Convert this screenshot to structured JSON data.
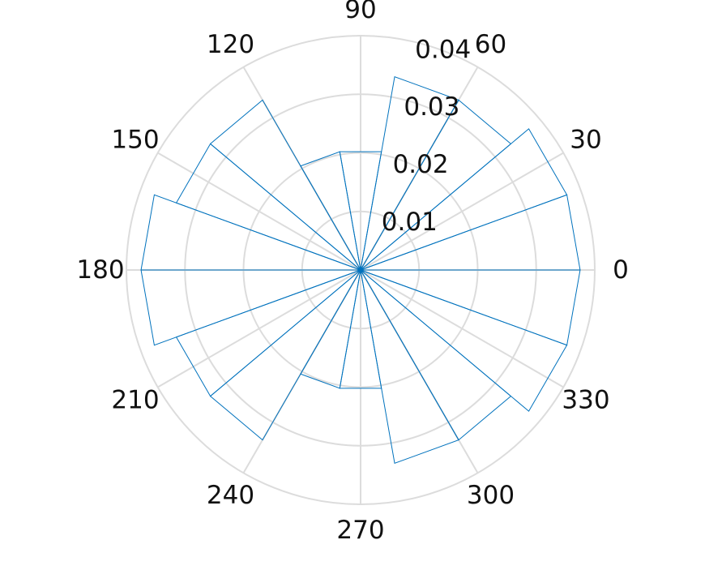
{
  "chart_data": {
    "type": "polar-histogram",
    "title": "",
    "theta_unit": "degrees",
    "theta_zero": "east",
    "theta_direction": "counterclockwise",
    "bin_width_deg": 20,
    "bin_edges": [
      0,
      20,
      40,
      60,
      80,
      100,
      120,
      140,
      160,
      180,
      200,
      220,
      240,
      260,
      280,
      300,
      320,
      340,
      360
    ],
    "values": [
      0.0375,
      0.0375,
      0.0335,
      0.0335,
      0.0205,
      0.0205,
      0.0335,
      0.0335,
      0.0375,
      0.0375,
      0.0335,
      0.0335,
      0.0205,
      0.0205,
      0.0335,
      0.0335,
      0.0375,
      0.0375
    ],
    "rlim": [
      0,
      0.04
    ],
    "radial_ticks": [
      "0.01",
      "0.02",
      "0.03",
      "0.04"
    ],
    "radial_tick_values": [
      0.01,
      0.02,
      0.03,
      0.04
    ],
    "angle_ticks": [
      "0",
      "30",
      "60",
      "90",
      "120",
      "150",
      "180",
      "210",
      "240",
      "270",
      "300",
      "330"
    ],
    "angle_tick_values": [
      0,
      30,
      60,
      90,
      120,
      150,
      180,
      210,
      240,
      270,
      300,
      330
    ],
    "grid": true,
    "series_color": "#0072bd",
    "grid_color": "#dcdcdc"
  }
}
